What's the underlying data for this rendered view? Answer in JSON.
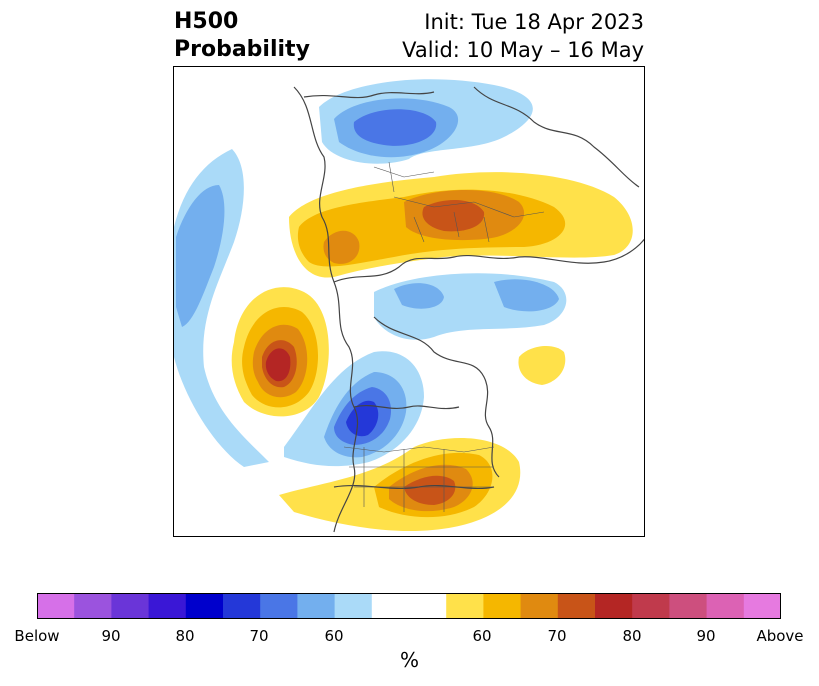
{
  "header": {
    "left_line1": "H500",
    "left_line2": "Probability",
    "right_line1": "Init: Tue 18 Apr 2023",
    "right_line2": "Valid: 10 May – 16 May"
  },
  "colorbar": {
    "colors": [
      "#d670e8",
      "#9b53de",
      "#6a35d8",
      "#3a17d6",
      "#0000cc",
      "#2438d8",
      "#4a76e6",
      "#73afee",
      "#aadaf8",
      "#ffffff",
      "#ffe14a",
      "#f5b700",
      "#e08a10",
      "#c85418",
      "#b42624",
      "#c03a4c",
      "#cd4f7e",
      "#dc62b4",
      "#e67ae0"
    ],
    "tick_labels": [
      "Below",
      "90",
      "80",
      "70",
      "60",
      "60",
      "70",
      "80",
      "90",
      "Above"
    ],
    "unit": "%"
  },
  "legend_colors": {
    "light_blue": "#aadaf8",
    "mid_blue": "#73afee",
    "blue": "#4a76e6",
    "dark_blue": "#2438d8",
    "yellow": "#ffe14a",
    "gold": "#f5b700",
    "orange": "#e08a10",
    "rust": "#c85418",
    "red": "#b42624"
  }
}
